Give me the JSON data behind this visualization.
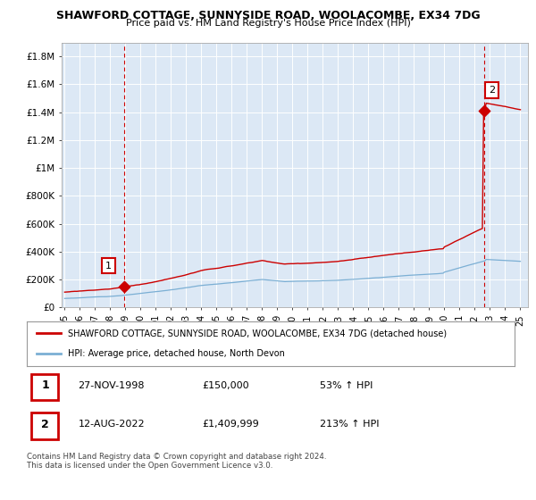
{
  "title": "SHAWFORD COTTAGE, SUNNYSIDE ROAD, WOOLACOMBE, EX34 7DG",
  "subtitle": "Price paid vs. HM Land Registry's House Price Index (HPI)",
  "legend_line1": "SHAWFORD COTTAGE, SUNNYSIDE ROAD, WOOLACOMBE, EX34 7DG (detached house)",
  "legend_line2": "HPI: Average price, detached house, North Devon",
  "red_line_color": "#cc0000",
  "blue_line_color": "#7bafd4",
  "grid_color": "#cccccc",
  "plot_bg_color": "#dce8f5",
  "ylim": [
    0,
    1900000
  ],
  "yticks": [
    0,
    200000,
    400000,
    600000,
    800000,
    1000000,
    1200000,
    1400000,
    1600000,
    1800000
  ],
  "ytick_labels": [
    "£0",
    "£200K",
    "£400K",
    "£600K",
    "£800K",
    "£1M",
    "£1.2M",
    "£1.4M",
    "£1.6M",
    "£1.8M"
  ],
  "purchase1_year": 1998.9,
  "purchase1_price": 150000,
  "purchase2_year": 2022.62,
  "purchase2_price": 1409999,
  "table_row1": [
    "1",
    "27-NOV-1998",
    "£150,000",
    "53% ↑ HPI"
  ],
  "table_row2": [
    "2",
    "12-AUG-2022",
    "£1,409,999",
    "213% ↑ HPI"
  ],
  "footer": "Contains HM Land Registry data © Crown copyright and database right 2024.\nThis data is licensed under the Open Government Licence v3.0.",
  "xmin": 1994.8,
  "xmax": 2025.5
}
